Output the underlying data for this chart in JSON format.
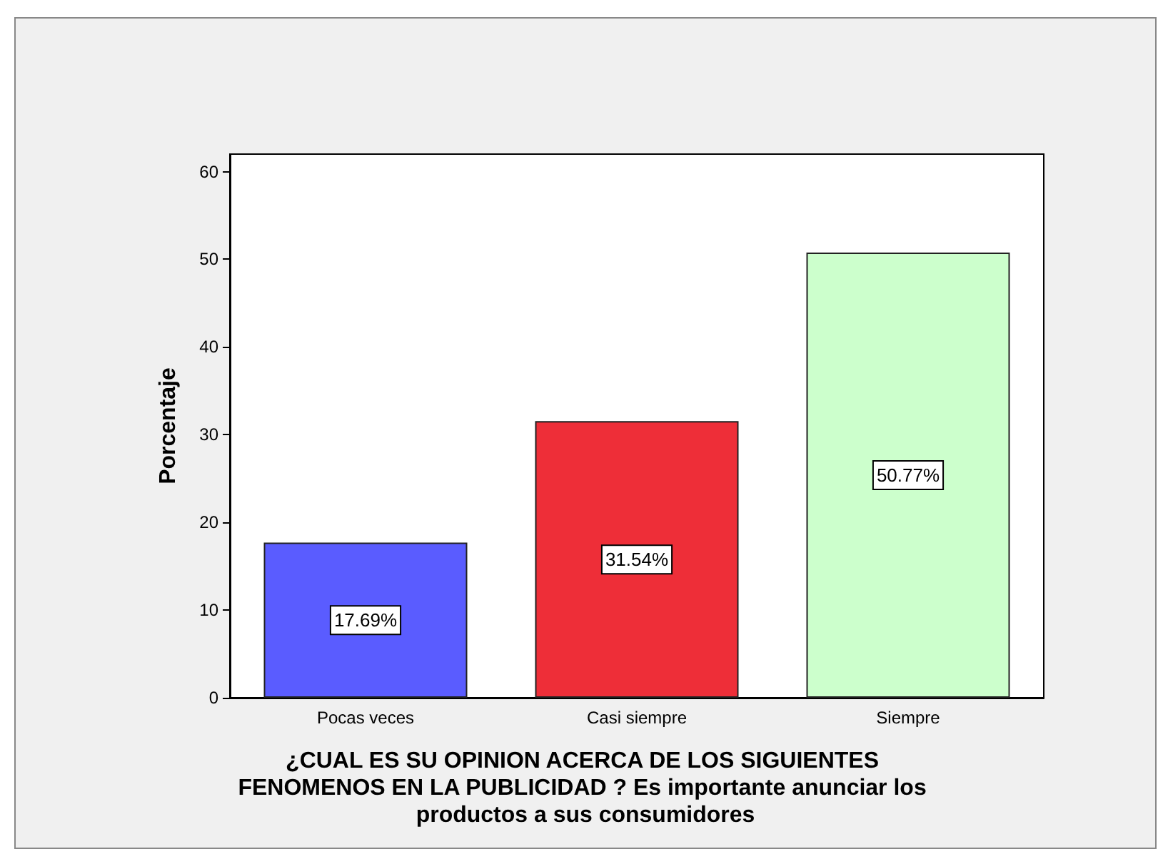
{
  "chart_data": {
    "type": "bar",
    "xlabel": "¿CUAL ES SU OPINION ACERCA DE LOS SIGUIENTES FENOMENOS EN LA PUBLICIDAD ? Es importante anunciar los productos a sus consumidores",
    "ylabel": "Porcentaje",
    "categories": [
      "Pocas veces",
      "Casi siempre",
      "Siempre"
    ],
    "values": [
      17.69,
      31.54,
      50.77
    ],
    "colors": [
      "#5a5cff",
      "#ee2e38",
      "#ccffcc"
    ],
    "value_labels": [
      "17.69%",
      "31.54%",
      "50.77%"
    ],
    "ylim": [
      0,
      62
    ],
    "yticks": [
      0,
      10,
      20,
      30,
      40,
      50,
      60
    ],
    "grid": false
  }
}
